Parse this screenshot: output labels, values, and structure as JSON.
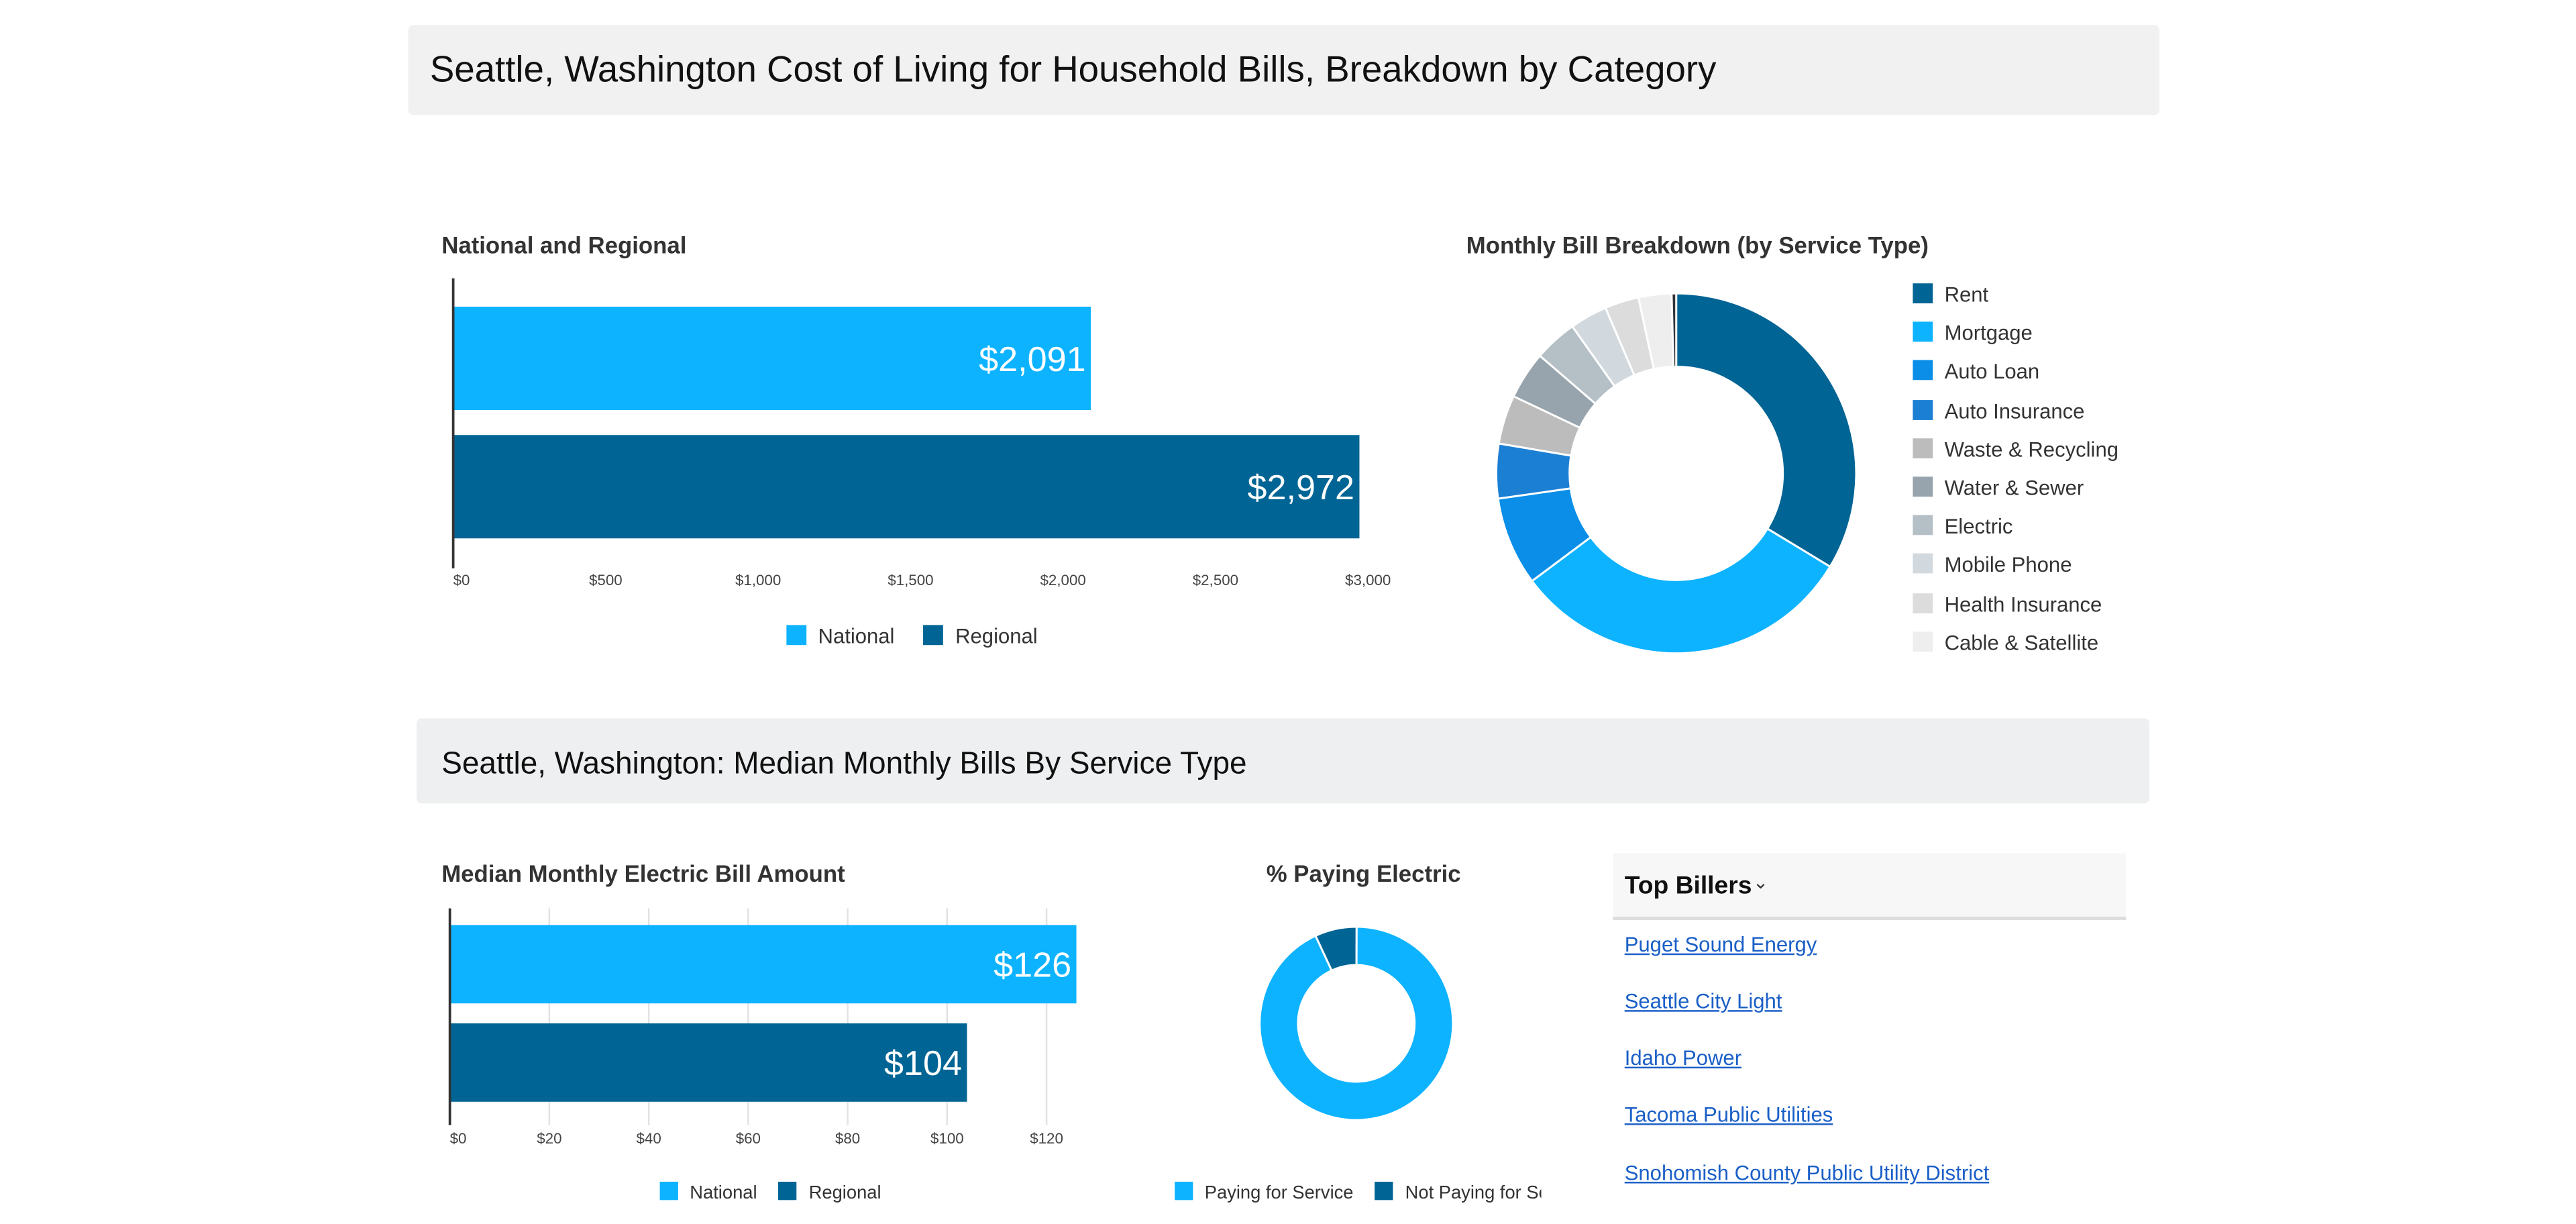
{
  "page": {
    "title": "Seattle, Washington Cost of Living for Household Bills, Breakdown by Category",
    "section_title": "Seattle, Washington: Median Monthly Bills By Service Type"
  },
  "colors": {
    "national": "#0db3ff",
    "regional": "#006494"
  },
  "chart_data": [
    {
      "type": "bar",
      "orientation": "horizontal",
      "title": "National and Regional",
      "categories": [
        "National",
        "Regional"
      ],
      "values": [
        2091,
        2972
      ],
      "data_labels": [
        "$2,091",
        "$2,972"
      ],
      "xlim": [
        0,
        3000
      ],
      "ticks": [
        0,
        500,
        1000,
        1500,
        2000,
        2500,
        3000
      ],
      "tick_labels": [
        "$0",
        "$500",
        "$1,000",
        "$1,500",
        "$2,000",
        "$2,500",
        "$3,000"
      ],
      "grid": false,
      "legend": {
        "position": "bottom",
        "entries": [
          "National",
          "Regional"
        ]
      }
    },
    {
      "type": "pie",
      "donut": true,
      "title": "Monthly Bill Breakdown (by Service Type)",
      "legend": {
        "position": "right"
      },
      "slices": [
        {
          "label": "Rent",
          "value": 33.0,
          "color": "#006494"
        },
        {
          "label": "Mortgage",
          "value": 30.5,
          "color": "#0db3ff"
        },
        {
          "label": "Auto Loan",
          "value": 7.8,
          "color": "#0a8ee8"
        },
        {
          "label": "Auto Insurance",
          "value": 4.8,
          "color": "#1b7fd4"
        },
        {
          "label": "Waste & Recycling",
          "value": 4.3,
          "color": "#bcbcbc"
        },
        {
          "label": "Water & Sewer",
          "value": 4.2,
          "color": "#97a4ad"
        },
        {
          "label": "Electric",
          "value": 3.8,
          "color": "#b4bfc6"
        },
        {
          "label": "Mobile Phone",
          "value": 3.3,
          "color": "#d2d9de"
        },
        {
          "label": "Health Insurance",
          "value": 3.0,
          "color": "#dcdcdc"
        },
        {
          "label": "Cable & Satellite",
          "value": 2.9,
          "color": "#eeeeee"
        },
        {
          "label": "",
          "value": 0.4,
          "color": "#333333"
        }
      ]
    },
    {
      "type": "bar",
      "orientation": "horizontal",
      "title": "Median Monthly Electric Bill Amount",
      "categories": [
        "National",
        "Regional"
      ],
      "values": [
        126,
        104
      ],
      "data_labels": [
        "$126",
        "$104"
      ],
      "xlim": [
        0,
        126
      ],
      "ticks": [
        0,
        20,
        40,
        60,
        80,
        100,
        120
      ],
      "tick_labels": [
        "$0",
        "$20",
        "$40",
        "$60",
        "$80",
        "$100",
        "$120"
      ],
      "grid": true,
      "legend": {
        "position": "bottom",
        "entries": [
          "National",
          "Regional"
        ]
      }
    },
    {
      "type": "pie",
      "donut": true,
      "title": "% Paying Electric",
      "slices": [
        {
          "label": "Paying for Service",
          "value": 93,
          "color": "#0db3ff"
        },
        {
          "label": "Not Paying for Service",
          "value": 7,
          "color": "#006494"
        }
      ],
      "legend": {
        "position": "bottom",
        "entries": [
          "Paying for Service",
          "Not Paying for Se"
        ]
      }
    }
  ],
  "billers": {
    "title": "Top Billers",
    "chevron_icon": "chevron-down-icon",
    "items": [
      "Puget Sound Energy",
      "Seattle City Light",
      "Idaho Power",
      "Tacoma Public Utilities",
      "Snohomish County Public Utility District"
    ]
  }
}
